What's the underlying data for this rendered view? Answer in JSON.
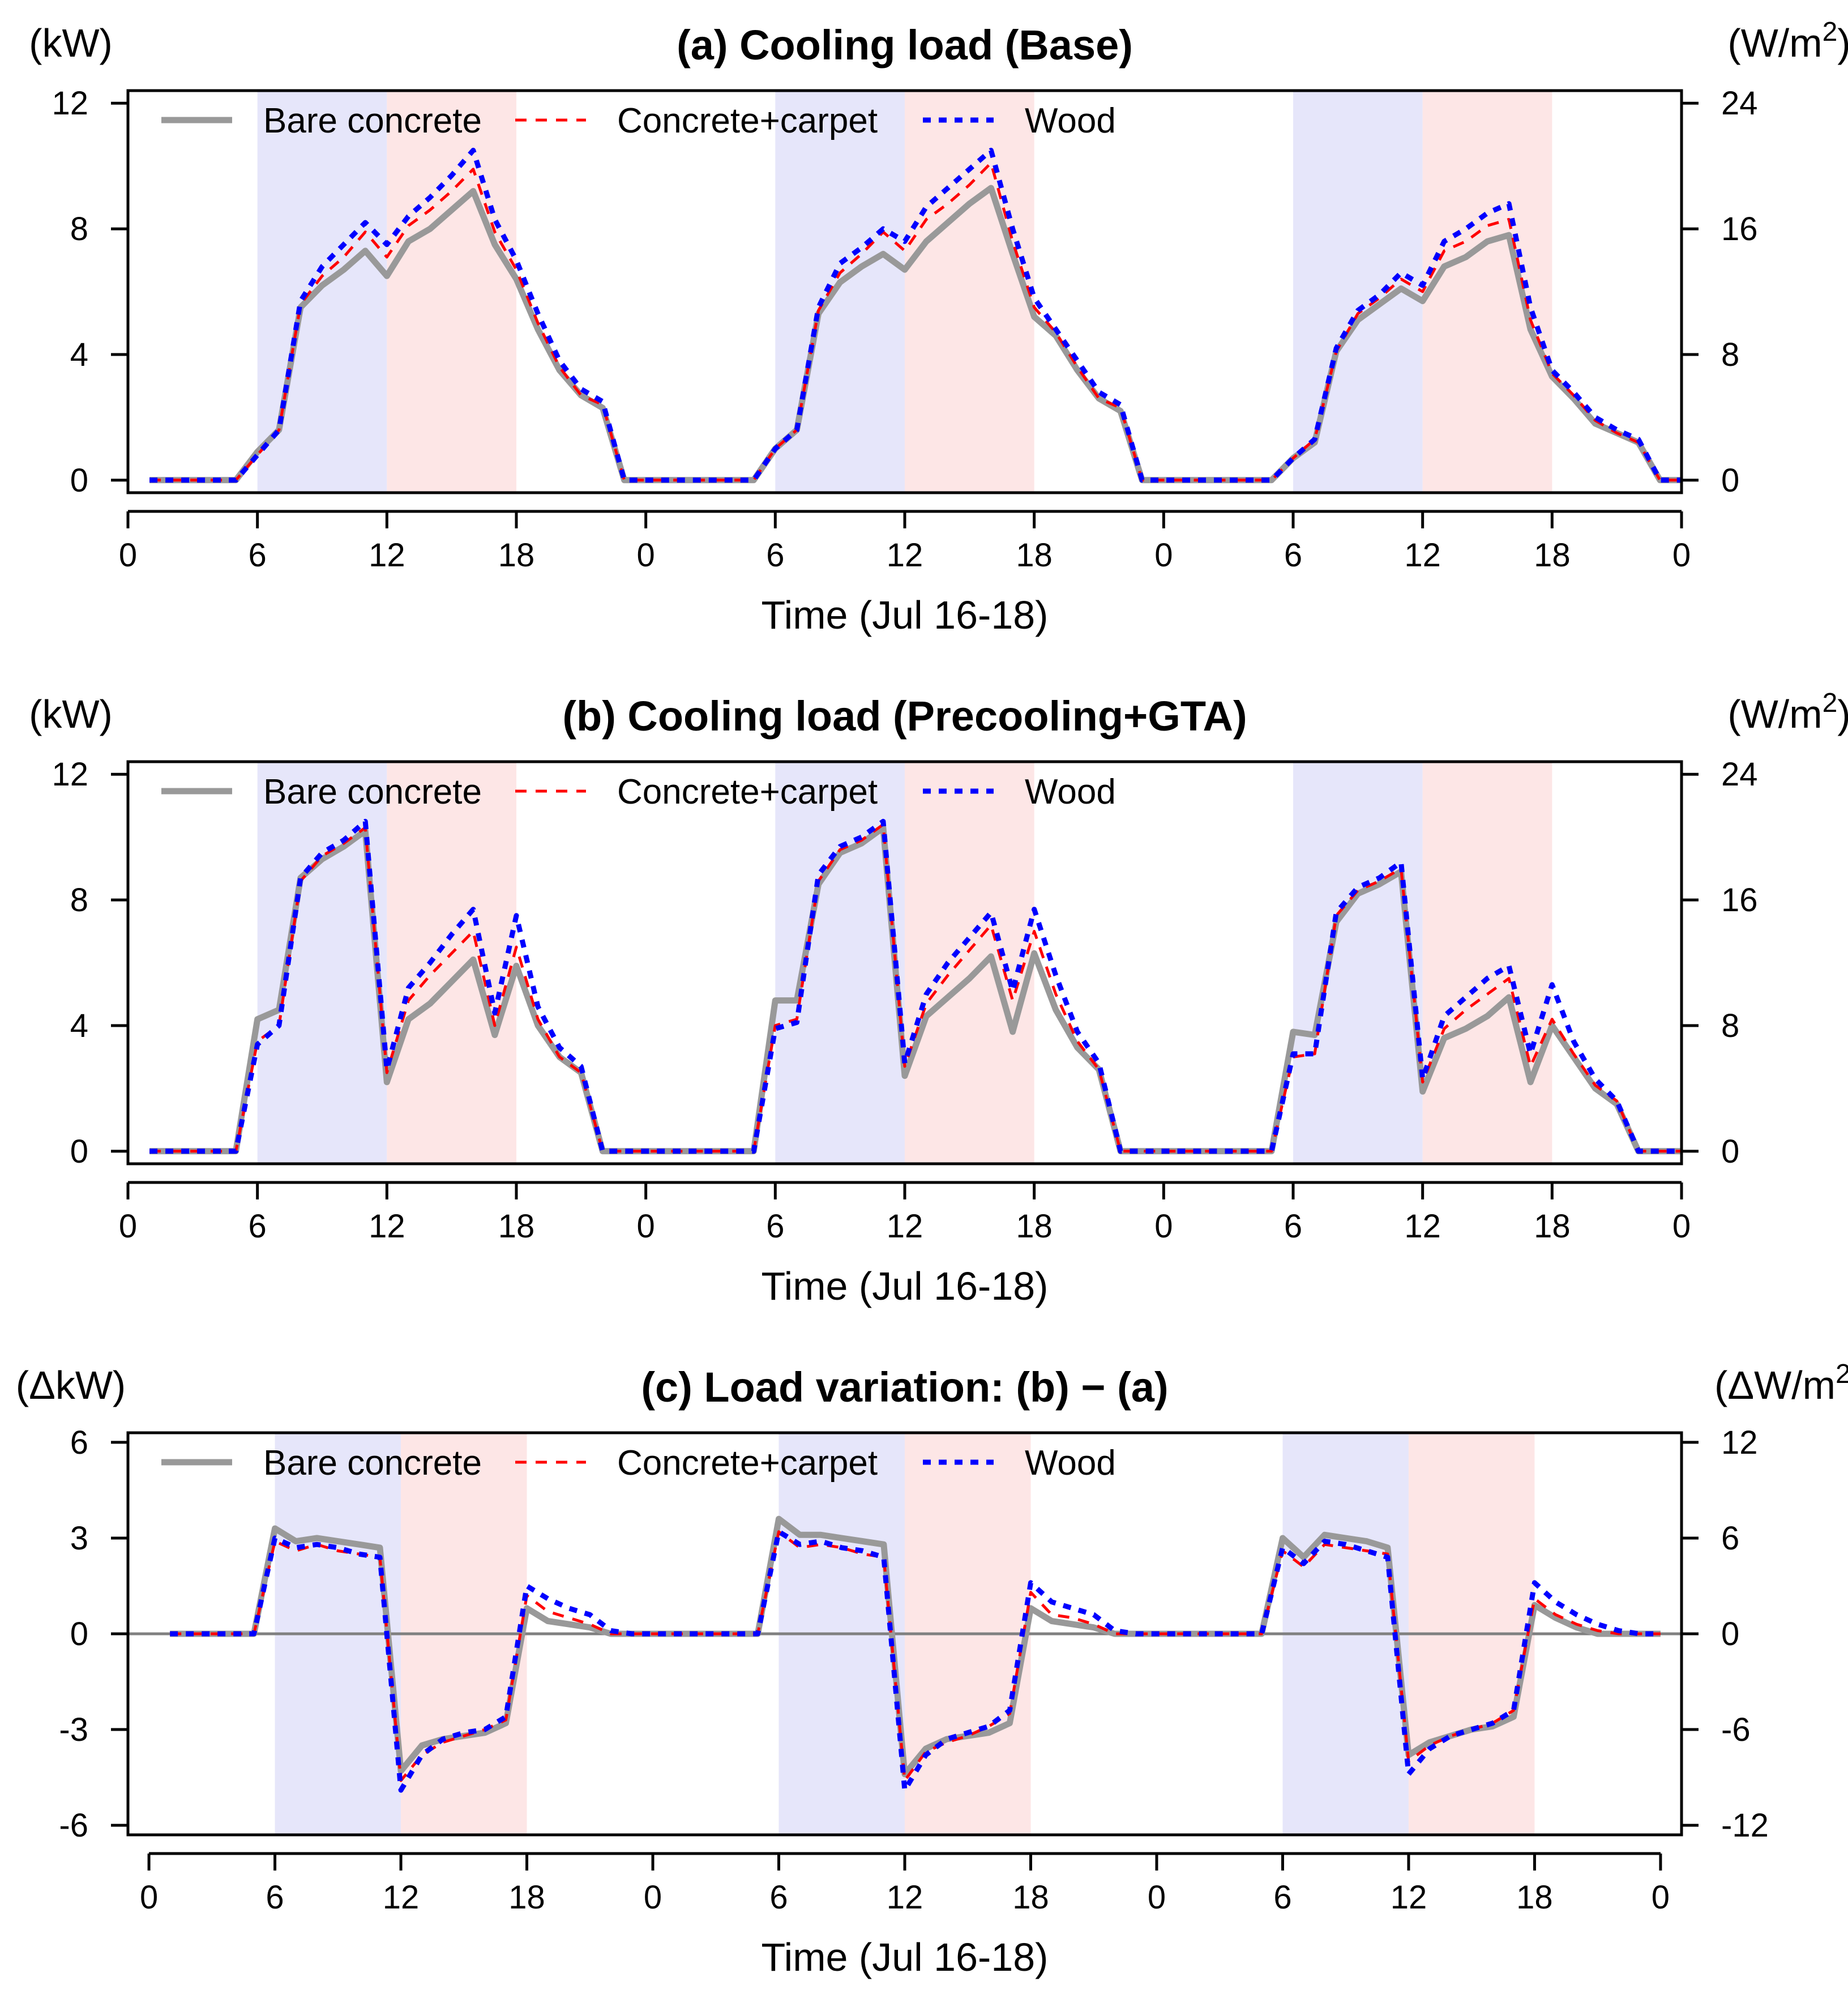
{
  "colors": {
    "bare": "#999999",
    "carpet": "#ff0000",
    "wood": "#0000ff",
    "morning_band": "#e6e6fa",
    "afternoon_band": "#fde6e6",
    "zero_line": "#808080"
  },
  "legend": [
    "Bare concrete",
    "Concrete+carpet",
    "Wood"
  ],
  "chart_data": [
    {
      "type": "line",
      "title": "(a) Cooling load (Base)",
      "xlabel": "Time (Jul 16-18)",
      "ylabel_left": "(kW)",
      "ylabel_right_prefix": "(W/m",
      "ylabel_right_sup": "2",
      "ylabel_right_suffix": ")",
      "xlim": [
        0,
        72
      ],
      "ylim": [
        -0.4,
        12.4
      ],
      "x_ticks": [
        0,
        6,
        12,
        18,
        24,
        30,
        36,
        42,
        48,
        54,
        60,
        66,
        72
      ],
      "x_tick_labels": [
        "0",
        "6",
        "12",
        "18",
        "0",
        "6",
        "12",
        "18",
        "0",
        "6",
        "12",
        "18",
        "0"
      ],
      "y_ticks": [
        0,
        4,
        8,
        12
      ],
      "y_tick_labels": [
        "0",
        "4",
        "8",
        "12"
      ],
      "y2_tick_labels": [
        "0",
        "8",
        "16",
        "24"
      ],
      "shaded": [
        {
          "from": 6,
          "to": 12,
          "kind": "morning"
        },
        {
          "from": 12,
          "to": 18,
          "kind": "afternoon"
        },
        {
          "from": 30,
          "to": 36,
          "kind": "morning"
        },
        {
          "from": 36,
          "to": 42,
          "kind": "afternoon"
        },
        {
          "from": 54,
          "to": 60,
          "kind": "morning"
        },
        {
          "from": 60,
          "to": 66,
          "kind": "afternoon"
        }
      ],
      "x": [
        1,
        2,
        3,
        4,
        5,
        6,
        7,
        8,
        9,
        10,
        11,
        12,
        13,
        14,
        15,
        16,
        17,
        18,
        19,
        20,
        21,
        22,
        23,
        24,
        25,
        26,
        27,
        28,
        29,
        30,
        31,
        32,
        33,
        34,
        35,
        36,
        37,
        38,
        39,
        40,
        41,
        42,
        43,
        44,
        45,
        46,
        47,
        48,
        49,
        50,
        51,
        52,
        53,
        54,
        55,
        56,
        57,
        58,
        59,
        60,
        61,
        62,
        63,
        64,
        65,
        66,
        67,
        68,
        69,
        70,
        71,
        72
      ],
      "series": [
        {
          "name": "Bare concrete",
          "values": [
            0,
            0,
            0,
            0,
            0,
            0.9,
            1.6,
            5.5,
            6.2,
            6.7,
            7.3,
            6.5,
            7.6,
            8.0,
            8.6,
            9.2,
            7.5,
            6.4,
            4.8,
            3.5,
            2.7,
            2.3,
            0,
            0,
            0,
            0,
            0,
            0,
            0,
            1.0,
            1.6,
            5.3,
            6.3,
            6.8,
            7.2,
            6.7,
            7.6,
            8.2,
            8.8,
            9.3,
            7.2,
            5.2,
            4.6,
            3.5,
            2.6,
            2.2,
            0,
            0,
            0,
            0,
            0,
            0,
            0,
            0.7,
            1.2,
            4.1,
            5.1,
            5.6,
            6.1,
            5.7,
            6.8,
            7.1,
            7.6,
            7.8,
            4.8,
            3.3,
            2.6,
            1.8,
            1.5,
            1.2,
            0,
            0
          ]
        },
        {
          "name": "Concrete+carpet",
          "values": [
            0,
            0,
            0,
            0,
            0,
            0.8,
            1.6,
            5.6,
            6.5,
            7.1,
            7.9,
            7.1,
            8.1,
            8.6,
            9.2,
            9.9,
            7.9,
            6.7,
            5.0,
            3.6,
            2.7,
            2.4,
            0,
            0,
            0,
            0,
            0,
            0,
            0,
            1.0,
            1.6,
            5.4,
            6.6,
            7.2,
            7.9,
            7.3,
            8.3,
            8.8,
            9.4,
            10.1,
            7.6,
            5.5,
            4.7,
            3.6,
            2.6,
            2.3,
            0,
            0,
            0,
            0,
            0,
            0,
            0,
            0.7,
            1.3,
            4.1,
            5.3,
            5.8,
            6.4,
            6.0,
            7.3,
            7.6,
            8.1,
            8.3,
            5.1,
            3.4,
            2.7,
            1.9,
            1.5,
            1.2,
            0,
            0
          ]
        },
        {
          "name": "Wood",
          "values": [
            0,
            0,
            0,
            0,
            0,
            0.8,
            1.6,
            5.7,
            6.8,
            7.5,
            8.2,
            7.5,
            8.4,
            9.0,
            9.7,
            10.5,
            8.3,
            7.0,
            5.3,
            3.8,
            2.9,
            2.5,
            0,
            0,
            0,
            0,
            0,
            0,
            0,
            1.0,
            1.6,
            5.5,
            6.9,
            7.4,
            8.0,
            7.6,
            8.7,
            9.3,
            9.9,
            10.5,
            8.0,
            5.8,
            4.8,
            3.8,
            2.8,
            2.4,
            0,
            0,
            0,
            0,
            0,
            0,
            0,
            0.7,
            1.3,
            4.2,
            5.4,
            5.9,
            6.6,
            6.2,
            7.6,
            8.0,
            8.5,
            8.8,
            5.5,
            3.5,
            2.8,
            2.0,
            1.6,
            1.3,
            0,
            0
          ]
        }
      ]
    },
    {
      "type": "line",
      "title": "(b) Cooling load (Precooling+GTA)",
      "xlabel": "Time (Jul 16-18)",
      "ylabel_left": "(kW)",
      "ylabel_right_prefix": "(W/m",
      "ylabel_right_sup": "2",
      "ylabel_right_suffix": ")",
      "xlim": [
        0,
        72
      ],
      "ylim": [
        -0.4,
        12.4
      ],
      "x_ticks": [
        0,
        6,
        12,
        18,
        24,
        30,
        36,
        42,
        48,
        54,
        60,
        66,
        72
      ],
      "x_tick_labels": [
        "0",
        "6",
        "12",
        "18",
        "0",
        "6",
        "12",
        "18",
        "0",
        "6",
        "12",
        "18",
        "0"
      ],
      "y_ticks": [
        0,
        4,
        8,
        12
      ],
      "y_tick_labels": [
        "0",
        "4",
        "8",
        "12"
      ],
      "y2_tick_labels": [
        "0",
        "8",
        "16",
        "24"
      ],
      "shaded": [
        {
          "from": 6,
          "to": 12,
          "kind": "morning"
        },
        {
          "from": 12,
          "to": 18,
          "kind": "afternoon"
        },
        {
          "from": 30,
          "to": 36,
          "kind": "morning"
        },
        {
          "from": 36,
          "to": 42,
          "kind": "afternoon"
        },
        {
          "from": 54,
          "to": 60,
          "kind": "morning"
        },
        {
          "from": 60,
          "to": 66,
          "kind": "afternoon"
        }
      ],
      "x": [
        1,
        2,
        3,
        4,
        5,
        6,
        7,
        8,
        9,
        10,
        11,
        12,
        13,
        14,
        15,
        16,
        17,
        18,
        19,
        20,
        21,
        22,
        23,
        24,
        25,
        26,
        27,
        28,
        29,
        30,
        31,
        32,
        33,
        34,
        35,
        36,
        37,
        38,
        39,
        40,
        41,
        42,
        43,
        44,
        45,
        46,
        47,
        48,
        49,
        50,
        51,
        52,
        53,
        54,
        55,
        56,
        57,
        58,
        59,
        60,
        61,
        62,
        63,
        64,
        65,
        66,
        67,
        68,
        69,
        70,
        71,
        72
      ],
      "series": [
        {
          "name": "Bare concrete",
          "values": [
            0,
            0,
            0,
            0,
            0,
            4.2,
            4.5,
            8.7,
            9.3,
            9.7,
            10.2,
            2.2,
            4.2,
            4.7,
            5.4,
            6.1,
            3.7,
            5.9,
            4.0,
            3.0,
            2.5,
            0,
            0,
            0,
            0,
            0,
            0,
            0,
            0,
            4.8,
            4.8,
            8.5,
            9.5,
            9.8,
            10.3,
            2.4,
            4.3,
            4.9,
            5.5,
            6.2,
            3.8,
            6.3,
            4.5,
            3.3,
            2.6,
            0,
            0,
            0,
            0,
            0,
            0,
            0,
            0,
            3.8,
            3.7,
            7.3,
            8.2,
            8.5,
            8.9,
            1.9,
            3.6,
            3.9,
            4.3,
            4.9,
            2.2,
            4.0,
            3.0,
            2.0,
            1.5,
            0,
            0,
            0
          ]
        },
        {
          "name": "Concrete+carpet",
          "values": [
            0,
            0,
            0,
            0,
            0,
            3.5,
            4.0,
            8.6,
            9.4,
            9.8,
            10.3,
            2.5,
            4.8,
            5.6,
            6.3,
            7.0,
            4.0,
            6.5,
            4.2,
            3.0,
            2.5,
            0,
            0,
            0,
            0,
            0,
            0,
            0,
            0,
            4.0,
            4.2,
            8.6,
            9.6,
            9.9,
            10.4,
            2.7,
            4.7,
            5.6,
            6.4,
            7.2,
            4.8,
            7.0,
            5.0,
            3.5,
            2.6,
            0,
            0,
            0,
            0,
            0,
            0,
            0,
            0,
            3.0,
            3.1,
            7.5,
            8.3,
            8.6,
            9.0,
            2.2,
            3.9,
            4.5,
            5.0,
            5.5,
            2.7,
            4.2,
            3.1,
            2.1,
            1.6,
            0,
            0,
            0
          ]
        },
        {
          "name": "Wood",
          "values": [
            0,
            0,
            0,
            0,
            0,
            3.4,
            4.0,
            8.7,
            9.5,
            9.9,
            10.5,
            2.6,
            5.2,
            6.0,
            6.9,
            7.7,
            4.4,
            7.5,
            4.6,
            3.3,
            2.7,
            0,
            0,
            0,
            0,
            0,
            0,
            0,
            0,
            3.9,
            4.1,
            8.8,
            9.7,
            10.0,
            10.5,
            2.8,
            5.0,
            6.0,
            6.8,
            7.6,
            5.1,
            7.7,
            5.6,
            3.8,
            2.8,
            0,
            0,
            0,
            0,
            0,
            0,
            0,
            0,
            3.1,
            3.1,
            7.6,
            8.4,
            8.7,
            9.2,
            2.3,
            4.3,
            4.9,
            5.5,
            5.9,
            3.1,
            5.3,
            3.5,
            2.3,
            1.6,
            0,
            0,
            0
          ]
        }
      ]
    },
    {
      "type": "line",
      "title": "(c) Load variation: (b) − (a)",
      "xlabel": "Time (Jul 16-18)",
      "ylabel_left": "(ΔkW)",
      "ylabel_right_prefix": "(ΔW/m",
      "ylabel_right_sup": "2",
      "ylabel_right_suffix": ")",
      "xlim": [
        -1,
        73
      ],
      "ylim": [
        -6.3,
        6.3
      ],
      "zero_line": true,
      "x_ticks": [
        0,
        6,
        12,
        18,
        24,
        30,
        36,
        42,
        48,
        54,
        60,
        66,
        72
      ],
      "x_tick_labels": [
        "0",
        "6",
        "12",
        "18",
        "0",
        "6",
        "12",
        "18",
        "0",
        "6",
        "12",
        "18",
        "0"
      ],
      "y_ticks": [
        -6,
        -3,
        0,
        3,
        6
      ],
      "y_tick_labels": [
        "-6",
        "-3",
        "0",
        "3",
        "6"
      ],
      "y2_tick_labels": [
        "-12",
        "-6",
        "0",
        "6",
        "12"
      ],
      "shaded": [
        {
          "from": 6,
          "to": 12,
          "kind": "morning"
        },
        {
          "from": 12,
          "to": 18,
          "kind": "afternoon"
        },
        {
          "from": 30,
          "to": 36,
          "kind": "morning"
        },
        {
          "from": 36,
          "to": 42,
          "kind": "afternoon"
        },
        {
          "from": 54,
          "to": 60,
          "kind": "morning"
        },
        {
          "from": 60,
          "to": 66,
          "kind": "afternoon"
        }
      ],
      "x": [
        1,
        2,
        3,
        4,
        5,
        6,
        7,
        8,
        9,
        10,
        11,
        12,
        13,
        14,
        15,
        16,
        17,
        18,
        19,
        20,
        21,
        22,
        23,
        24,
        25,
        26,
        27,
        28,
        29,
        30,
        31,
        32,
        33,
        34,
        35,
        36,
        37,
        38,
        39,
        40,
        41,
        42,
        43,
        44,
        45,
        46,
        47,
        48,
        49,
        50,
        51,
        52,
        53,
        54,
        55,
        56,
        57,
        58,
        59,
        60,
        61,
        62,
        63,
        64,
        65,
        66,
        67,
        68,
        69,
        70,
        71,
        72
      ],
      "series": [
        {
          "name": "Bare concrete",
          "values": [
            0,
            0,
            0,
            0,
            0,
            3.3,
            2.9,
            3.0,
            2.9,
            2.8,
            2.7,
            -4.3,
            -3.5,
            -3.3,
            -3.2,
            -3.1,
            -2.8,
            0.8,
            0.4,
            0.3,
            0.2,
            0,
            0,
            0,
            0,
            0,
            0,
            0,
            0,
            3.6,
            3.1,
            3.1,
            3.0,
            2.9,
            2.8,
            -4.4,
            -3.6,
            -3.3,
            -3.2,
            -3.1,
            -2.8,
            0.8,
            0.4,
            0.3,
            0.2,
            0,
            0,
            0,
            0,
            0,
            0,
            0,
            0,
            3.0,
            2.4,
            3.1,
            3.0,
            2.9,
            2.7,
            -3.8,
            -3.4,
            -3.2,
            -3.0,
            -2.9,
            -2.6,
            0.9,
            0.5,
            0.2,
            0,
            0,
            0,
            0
          ]
        },
        {
          "name": "Concrete+carpet",
          "values": [
            0,
            0,
            0,
            0,
            0,
            2.9,
            2.6,
            2.8,
            2.6,
            2.5,
            2.4,
            -4.6,
            -3.8,
            -3.4,
            -3.2,
            -3.0,
            -2.7,
            1.2,
            0.7,
            0.5,
            0.3,
            0,
            0,
            0,
            0,
            0,
            0,
            0,
            0,
            3.2,
            2.7,
            2.8,
            2.7,
            2.5,
            2.4,
            -4.6,
            -3.7,
            -3.4,
            -3.2,
            -2.9,
            -2.5,
            1.3,
            0.6,
            0.5,
            0.3,
            0,
            0,
            0,
            0,
            0,
            0,
            0,
            0,
            2.6,
            2.1,
            2.8,
            2.7,
            2.6,
            2.5,
            -4.0,
            -3.5,
            -3.2,
            -3.0,
            -2.8,
            -2.4,
            1.1,
            0.6,
            0.3,
            0.1,
            0,
            0,
            0
          ]
        },
        {
          "name": "Wood",
          "values": [
            0,
            0,
            0,
            0,
            0,
            3.0,
            2.7,
            2.8,
            2.7,
            2.5,
            2.4,
            -4.9,
            -3.8,
            -3.3,
            -3.1,
            -3.0,
            -2.6,
            1.5,
            1.1,
            0.8,
            0.6,
            0.1,
            0,
            0,
            0,
            0,
            0,
            0,
            0,
            3.2,
            2.8,
            2.9,
            2.7,
            2.6,
            2.4,
            -4.9,
            -3.8,
            -3.3,
            -3.1,
            -2.9,
            -2.4,
            1.6,
            1.0,
            0.8,
            0.6,
            0.1,
            0,
            0,
            0,
            0,
            0,
            0,
            0,
            2.7,
            2.2,
            2.9,
            2.8,
            2.6,
            2.4,
            -4.4,
            -3.6,
            -3.2,
            -3.0,
            -2.8,
            -2.4,
            1.6,
            1.0,
            0.6,
            0.3,
            0.1,
            0,
            0
          ]
        }
      ]
    }
  ]
}
